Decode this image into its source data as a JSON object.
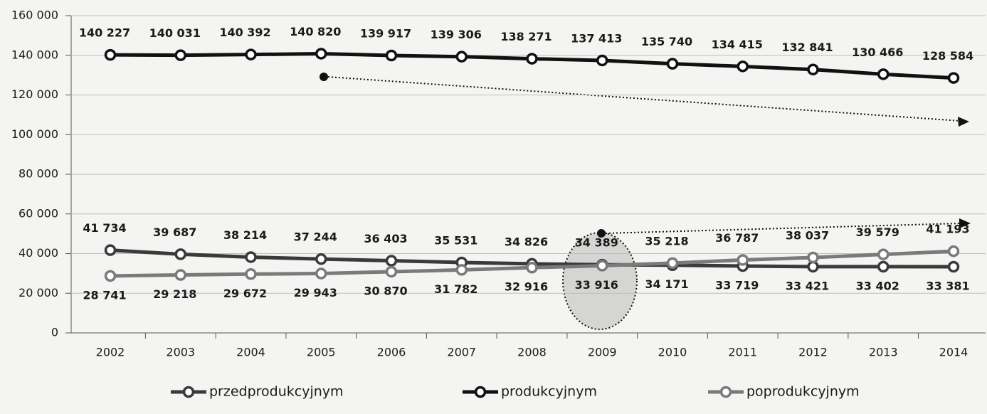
{
  "chart_data": {
    "type": "line",
    "categories": [
      "2002",
      "2003",
      "2004",
      "2005",
      "2006",
      "2007",
      "2008",
      "2009",
      "2010",
      "2011",
      "2012",
      "2013",
      "2014"
    ],
    "series": [
      {
        "name": "przedprodukcyjnym",
        "color": "#3a3a3a",
        "values": [
          41734,
          39687,
          38214,
          37244,
          36403,
          35531,
          34826,
          34389,
          34171,
          33719,
          33421,
          33402,
          33381
        ],
        "value_labels": [
          "41 734",
          "39 687",
          "38 214",
          "37 244",
          "36 403",
          "35 531",
          "34 826",
          "34 389",
          "34 171",
          "33 719",
          "33 421",
          "33 402",
          "33 381"
        ]
      },
      {
        "name": "produkcyjnym",
        "color": "#111111",
        "values": [
          140227,
          140031,
          140392,
          140820,
          139917,
          139306,
          138271,
          137413,
          135740,
          134415,
          132841,
          130466,
          128584
        ],
        "value_labels": [
          "140 227",
          "140 031",
          "140 392",
          "140 820",
          "139 917",
          "139 306",
          "138 271",
          "137 413",
          "135 740",
          "134 415",
          "132 841",
          "130 466",
          "128 584"
        ]
      },
      {
        "name": "poprodukcyjnym",
        "color": "#7a7a7a",
        "values": [
          28741,
          29218,
          29672,
          29943,
          30870,
          31782,
          32916,
          33916,
          35218,
          36787,
          38037,
          39579,
          41193
        ],
        "value_labels": [
          "28 741",
          "29 218",
          "29 672",
          "29 943",
          "30 870",
          "31 782",
          "32 916",
          "33 916",
          "35 218",
          "36 787",
          "38 037",
          "39 579",
          "41 193"
        ]
      }
    ],
    "ylim": [
      0,
      160000
    ],
    "yticks": [
      0,
      {
        "value": 20000,
        "label": "20 000"
      },
      {
        "value": 40000,
        "label": "40 000"
      },
      {
        "value": 60000,
        "label": "60 000"
      },
      {
        "value": 80000,
        "label": "80 000"
      },
      {
        "value": 100000,
        "label": "100 000"
      },
      {
        "value": 120000,
        "label": "120 000"
      },
      {
        "value": 140000,
        "label": "140 000"
      },
      {
        "value": 160000,
        "label": "160 000"
      }
    ],
    "grid": true,
    "legend": "bottom"
  }
}
